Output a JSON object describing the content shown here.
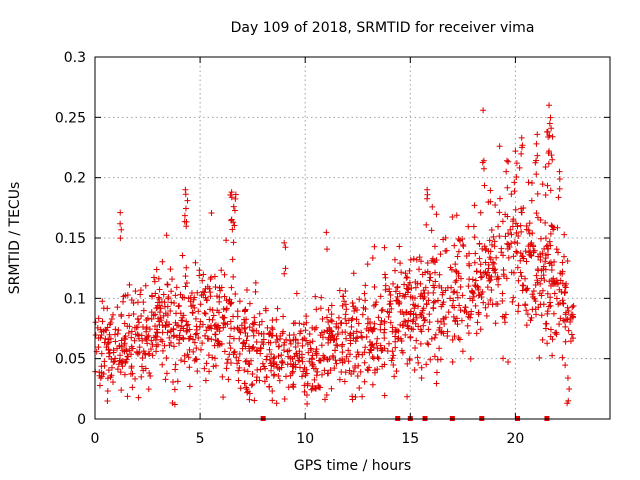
{
  "chart_data": {
    "type": "scatter",
    "title": "Day 109 of 2018, SRMTID for receiver vima",
    "xlabel": "GPS time / hours",
    "ylabel": "SRMTID / TECUs",
    "xlim": [
      0,
      24.5
    ],
    "ylim": [
      0,
      0.3
    ],
    "xticks": [
      0,
      5,
      10,
      15,
      20
    ],
    "xtick_labels": [
      "0",
      "5",
      "10",
      "15",
      "20"
    ],
    "yticks": [
      0,
      0.05,
      0.1,
      0.15,
      0.2,
      0.25,
      0.3
    ],
    "ytick_labels": [
      "0",
      "0.05",
      "0.1",
      "0.15",
      "0.2",
      "0.25",
      "0.3"
    ],
    "grid": true,
    "marker": "+",
    "series_color": "#e00000",
    "trend_profile": [
      {
        "x": 0.0,
        "y": 0.055,
        "spread": 0.025
      },
      {
        "x": 1.0,
        "y": 0.06,
        "spread": 0.025
      },
      {
        "x": 2.0,
        "y": 0.062,
        "spread": 0.03
      },
      {
        "x": 3.0,
        "y": 0.075,
        "spread": 0.03
      },
      {
        "x": 4.0,
        "y": 0.08,
        "spread": 0.035
      },
      {
        "x": 5.0,
        "y": 0.078,
        "spread": 0.03
      },
      {
        "x": 6.0,
        "y": 0.085,
        "spread": 0.035
      },
      {
        "x": 7.0,
        "y": 0.065,
        "spread": 0.03
      },
      {
        "x": 8.0,
        "y": 0.055,
        "spread": 0.025
      },
      {
        "x": 9.0,
        "y": 0.052,
        "spread": 0.025
      },
      {
        "x": 10.0,
        "y": 0.05,
        "spread": 0.025
      },
      {
        "x": 11.0,
        "y": 0.058,
        "spread": 0.025
      },
      {
        "x": 12.0,
        "y": 0.062,
        "spread": 0.03
      },
      {
        "x": 13.0,
        "y": 0.068,
        "spread": 0.03
      },
      {
        "x": 14.0,
        "y": 0.078,
        "spread": 0.03
      },
      {
        "x": 15.0,
        "y": 0.085,
        "spread": 0.03
      },
      {
        "x": 16.0,
        "y": 0.095,
        "spread": 0.035
      },
      {
        "x": 17.0,
        "y": 0.1,
        "spread": 0.035
      },
      {
        "x": 18.0,
        "y": 0.11,
        "spread": 0.035
      },
      {
        "x": 19.0,
        "y": 0.13,
        "spread": 0.04
      },
      {
        "x": 20.0,
        "y": 0.135,
        "spread": 0.04
      },
      {
        "x": 21.0,
        "y": 0.135,
        "spread": 0.045
      },
      {
        "x": 22.0,
        "y": 0.11,
        "spread": 0.035
      },
      {
        "x": 22.8,
        "y": 0.075,
        "spread": 0.02
      }
    ],
    "spikes": [
      {
        "x": 1.2,
        "y": 0.171
      },
      {
        "x": 4.3,
        "y": 0.19
      },
      {
        "x": 4.4,
        "y": 0.181
      },
      {
        "x": 6.5,
        "y": 0.188
      },
      {
        "x": 6.7,
        "y": 0.186
      },
      {
        "x": 6.6,
        "y": 0.176
      },
      {
        "x": 9.0,
        "y": 0.146
      },
      {
        "x": 15.8,
        "y": 0.19
      },
      {
        "x": 18.5,
        "y": 0.214
      },
      {
        "x": 19.6,
        "y": 0.214
      },
      {
        "x": 20.0,
        "y": 0.222
      },
      {
        "x": 20.3,
        "y": 0.233
      },
      {
        "x": 21.0,
        "y": 0.228
      },
      {
        "x": 21.6,
        "y": 0.26
      },
      {
        "x": 21.7,
        "y": 0.241
      },
      {
        "x": 21.5,
        "y": 0.238
      },
      {
        "x": 21.6,
        "y": 0.222
      },
      {
        "x": 22.1,
        "y": 0.205
      },
      {
        "x": 3.8,
        "y": 0.012
      },
      {
        "x": 22.5,
        "y": 0.034
      }
    ],
    "zero_markers_x": [
      8.0,
      14.4,
      15.0,
      15.7,
      17.0,
      18.4,
      20.1,
      21.5
    ],
    "point_count": 1600,
    "x_range": [
      0.0,
      22.8
    ]
  }
}
